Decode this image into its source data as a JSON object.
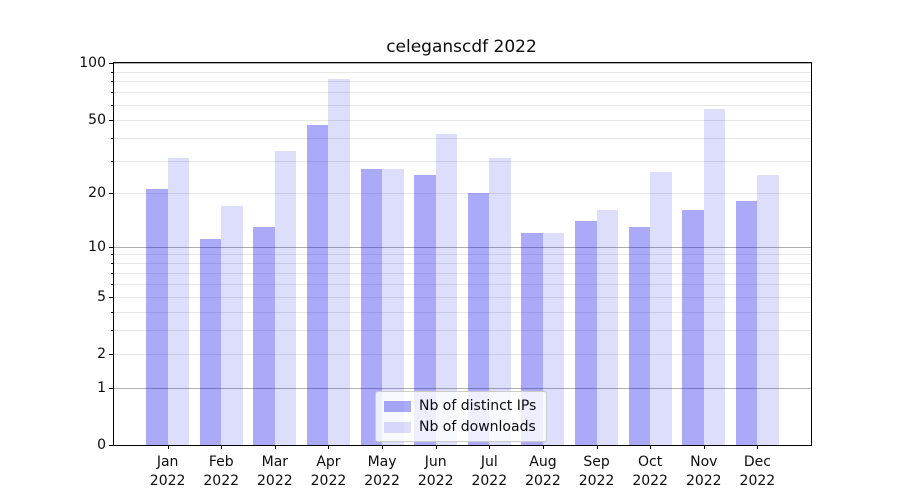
{
  "title": "celeganscdf 2022",
  "colors": {
    "ips_bar": "rgba(12,12,235,0.35)",
    "downloads_bar": "rgba(12,12,235,0.14)",
    "ips_hex_on_white": "#aaaaf8",
    "downloads_hex_on_white": "#dcdcf8",
    "grid_major": "#b0b0b0",
    "grid_minor": "#e7e7e7",
    "axis": "#000000"
  },
  "legend": {
    "items": [
      {
        "label": "Nb of distinct IPs",
        "color": "rgba(12,12,235,0.35)"
      },
      {
        "label": "Nb of downloads",
        "color": "rgba(12,12,235,0.14)"
      }
    ]
  },
  "chart_data": {
    "type": "bar",
    "title": "celeganscdf 2022",
    "categories": [
      "Jan",
      "Feb",
      "Mar",
      "Apr",
      "May",
      "Jun",
      "Jul",
      "Aug",
      "Sep",
      "Oct",
      "Nov",
      "Dec"
    ],
    "xtick_year": "2022",
    "series": [
      {
        "name": "Nb of distinct IPs",
        "color": "rgba(12,12,235,0.35)",
        "values": [
          21,
          11,
          13,
          47,
          27,
          25,
          20,
          12,
          14,
          13,
          16,
          18
        ]
      },
      {
        "name": "Nb of downloads",
        "color": "rgba(12,12,235,0.14)",
        "values": [
          31,
          17,
          34,
          82,
          27,
          42,
          31,
          12,
          16,
          26,
          57,
          25
        ]
      }
    ],
    "yscale": "log1p",
    "ylim": [
      0,
      100
    ],
    "yticks": [
      0,
      1,
      2,
      5,
      10,
      20,
      50,
      100
    ],
    "grid_major": [
      1,
      10,
      100
    ],
    "grid_minor": [
      2,
      3,
      4,
      5,
      6,
      7,
      8,
      9,
      20,
      30,
      40,
      50,
      60,
      70,
      80,
      90
    ],
    "grid": "on",
    "legend_position": "lower center",
    "xlabel": "",
    "ylabel": ""
  }
}
